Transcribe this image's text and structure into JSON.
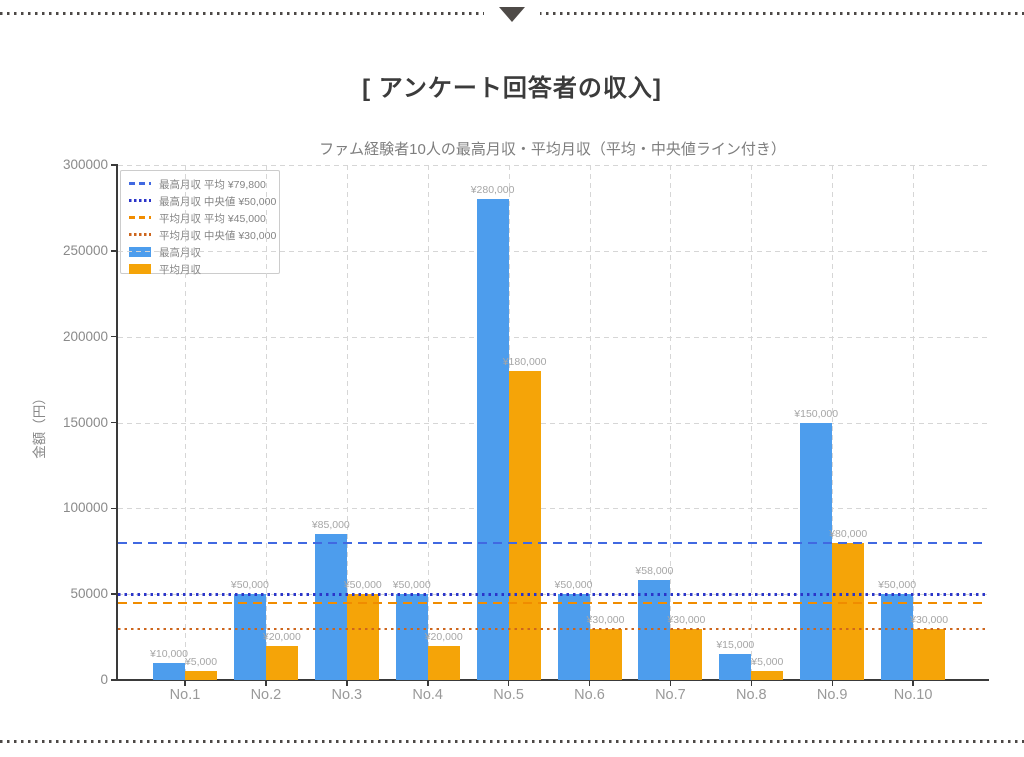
{
  "page": {
    "title": "[ アンケート回答者の収入]"
  },
  "chart_data": {
    "type": "bar",
    "title": "ファム経験者10人の最高月収・平均月収（平均・中央値ライン付き）",
    "xlabel": "",
    "ylabel": "金額（円）",
    "categories": [
      "No.1",
      "No.2",
      "No.3",
      "No.4",
      "No.5",
      "No.6",
      "No.7",
      "No.8",
      "No.9",
      "No.10"
    ],
    "series": [
      {
        "name": "最高月収",
        "color": "#4d9ded",
        "values": [
          10000,
          50000,
          85000,
          50000,
          280000,
          50000,
          58000,
          15000,
          150000,
          50000
        ],
        "value_labels": [
          "¥10,000",
          "¥50,000",
          "¥85,000",
          "¥50,000",
          "¥280,000",
          "¥50,000",
          "¥58,000",
          "¥15,000",
          "¥150,000",
          "¥50,000"
        ]
      },
      {
        "name": "平均月収",
        "color": "#f5a408",
        "values": [
          5000,
          20000,
          50000,
          20000,
          180000,
          30000,
          30000,
          5000,
          80000,
          30000
        ],
        "value_labels": [
          "¥5,000",
          "¥20,000",
          "¥50,000",
          "¥20,000",
          "¥180,000",
          "¥30,000",
          "¥30,000",
          "¥5,000",
          "¥80,000",
          "¥30,000"
        ]
      }
    ],
    "reference_lines": [
      {
        "label": "最高月収 平均 ¥79,800",
        "value": 79800,
        "color": "#4169e1",
        "style": "dashed"
      },
      {
        "label": "最高月収 中央値 ¥50,000",
        "value": 50000,
        "color": "#2b35c9",
        "style": "dotted"
      },
      {
        "label": "平均月収 平均 ¥45,000",
        "value": 45000,
        "color": "#f08c00",
        "style": "dashed"
      },
      {
        "label": "平均月収 中央値 ¥30,000",
        "value": 30000,
        "color": "#cd661d",
        "style": "dotted"
      }
    ],
    "ylim": [
      0,
      300000
    ],
    "yticks": [
      0,
      50000,
      100000,
      150000,
      200000,
      250000,
      300000
    ],
    "ytick_labels": [
      "0",
      "50000",
      "100000",
      "150000",
      "200000",
      "250000",
      "300000"
    ],
    "grid": true,
    "legend_position": "upper-left"
  }
}
